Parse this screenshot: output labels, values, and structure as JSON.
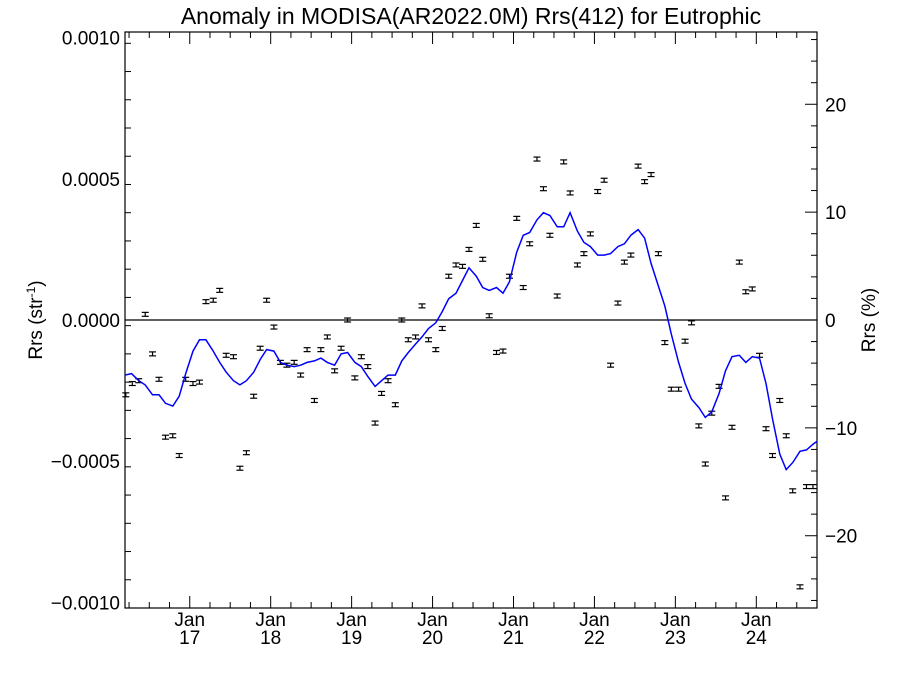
{
  "chart_data": {
    "type": "line",
    "title": "Anomaly in MODISA(AR2022.0M) Rrs(412) for Eutrophic",
    "ylabel_left": {
      "main": "Rrs (str",
      "sup": "-1",
      "tail": ")"
    },
    "ylabel_right": "Rrs (%)",
    "xlim": [
      2016.2,
      2024.75
    ],
    "ylim": [
      -0.00102,
      0.00102
    ],
    "ylim_right": [
      -26.7,
      26.7
    ],
    "grid": false,
    "zero_line": true,
    "x_ticks": [
      {
        "x": 2017,
        "label_top": "Jan",
        "label_bottom": "17"
      },
      {
        "x": 2018,
        "label_top": "Jan",
        "label_bottom": "18"
      },
      {
        "x": 2019,
        "label_top": "Jan",
        "label_bottom": "19"
      },
      {
        "x": 2020,
        "label_top": "Jan",
        "label_bottom": "20"
      },
      {
        "x": 2021,
        "label_top": "Jan",
        "label_bottom": "21"
      },
      {
        "x": 2022,
        "label_top": "Jan",
        "label_bottom": "22"
      },
      {
        "x": 2023,
        "label_top": "Jan",
        "label_bottom": "23"
      },
      {
        "x": 2024,
        "label_top": "Jan",
        "label_bottom": "24"
      }
    ],
    "y_ticks_left": [
      {
        "value": 0.001,
        "label": "0.0010"
      },
      {
        "value": 0.0005,
        "label": "0.0005"
      },
      {
        "value": 0.0,
        "label": "0.0000"
      },
      {
        "value": -0.0005,
        "label": "−0.0005"
      },
      {
        "value": -0.001,
        "label": "−0.0010"
      }
    ],
    "y_ticks_right": [
      {
        "value": 20,
        "label": "20"
      },
      {
        "value": 10,
        "label": "10"
      },
      {
        "value": 0,
        "label": "0"
      },
      {
        "value": -10,
        "label": "−10"
      },
      {
        "value": -20,
        "label": "−20"
      }
    ],
    "series": [
      {
        "style": "errorbar-points",
        "color": "#000000",
        "error": 7e-06,
        "x": [
          2016.21,
          2016.29,
          2016.37,
          2016.45,
          2016.54,
          2016.62,
          2016.7,
          2016.79,
          2016.87,
          2016.95,
          2017.04,
          2017.12,
          2017.2,
          2017.29,
          2017.37,
          2017.45,
          2017.54,
          2017.62,
          2017.7,
          2017.79,
          2017.87,
          2017.95,
          2018.04,
          2018.12,
          2018.2,
          2018.29,
          2018.37,
          2018.45,
          2018.54,
          2018.62,
          2018.7,
          2018.79,
          2018.87,
          2018.95,
          2019.04,
          2019.12,
          2019.2,
          2019.29,
          2019.37,
          2019.45,
          2019.54,
          2019.62,
          2019.7,
          2019.79,
          2019.87,
          2019.95,
          2020.04,
          2020.12,
          2020.2,
          2020.29,
          2020.37,
          2020.45,
          2020.54,
          2020.62,
          2020.7,
          2020.79,
          2020.87,
          2020.95,
          2021.04,
          2021.12,
          2021.2,
          2021.29,
          2021.37,
          2021.45,
          2021.54,
          2021.62,
          2021.7,
          2021.79,
          2021.87,
          2021.95,
          2022.04,
          2022.12,
          2022.2,
          2022.29,
          2022.37,
          2022.45,
          2022.54,
          2022.62,
          2022.7,
          2022.79,
          2022.87,
          2022.95,
          2023.04,
          2023.12,
          2023.2,
          2023.29,
          2023.37,
          2023.45,
          2023.54,
          2023.62,
          2023.7,
          2023.79,
          2023.87,
          2023.95,
          2024.04,
          2024.12,
          2024.2,
          2024.29,
          2024.37,
          2024.45,
          2024.54,
          2024.62,
          2024.7
        ],
        "y": [
          -0.000265,
          -0.000225,
          -0.000215,
          2e-05,
          -0.00012,
          -0.00021,
          -0.000415,
          -0.00041,
          -0.00048,
          -0.00021,
          -0.000225,
          -0.00022,
          6.5e-05,
          7e-05,
          0.000105,
          -0.000125,
          -0.00013,
          -0.000525,
          -0.00047,
          -0.00027,
          -0.0001,
          7e-05,
          -2.5e-05,
          -0.00015,
          -0.00016,
          -0.00015,
          -0.000195,
          -0.000105,
          -0.000285,
          -0.000105,
          -6e-05,
          -0.00018,
          -0.0001,
          0.0,
          -0.000205,
          -0.00013,
          -0.000165,
          -0.000365,
          -0.00026,
          -0.000215,
          -0.0003,
          0.0,
          -7e-05,
          -6e-05,
          5e-05,
          -7e-05,
          -0.000105,
          -3e-05,
          0.000155,
          0.000195,
          0.00019,
          0.00025,
          0.000335,
          0.000215,
          1.5e-05,
          -0.000115,
          -0.00011,
          0.000155,
          0.00036,
          0.000115,
          0.00027,
          0.00057,
          0.000465,
          0.0003,
          8.5e-05,
          0.00056,
          0.00045,
          0.000195,
          0.000235,
          0.000305,
          0.000455,
          0.000495,
          -0.00016,
          6e-05,
          0.000205,
          0.00023,
          0.000545,
          0.00049,
          0.000515,
          0.000235,
          -8e-05,
          -0.000245,
          -0.000245,
          -7.5e-05,
          -1e-05,
          -0.000375,
          -0.00051,
          -0.00033,
          -0.000235,
          -0.00063,
          -0.00038,
          0.000205,
          0.0001,
          0.00011,
          -0.000125,
          -0.000385,
          -0.00048,
          -0.000285,
          -0.00041,
          -0.000605,
          -0.000945,
          -0.00059,
          -0.00059
        ]
      },
      {
        "style": "line",
        "color": "#0000ff",
        "x": [
          2016.2,
          2016.28,
          2016.37,
          2016.45,
          2016.54,
          2016.62,
          2016.7,
          2016.79,
          2016.87,
          2016.95,
          2017.04,
          2017.12,
          2017.2,
          2017.29,
          2017.37,
          2017.45,
          2017.54,
          2017.62,
          2017.7,
          2017.79,
          2017.87,
          2017.95,
          2018.04,
          2018.12,
          2018.2,
          2018.29,
          2018.37,
          2018.45,
          2018.54,
          2018.62,
          2018.7,
          2018.79,
          2018.87,
          2018.95,
          2019.04,
          2019.12,
          2019.2,
          2019.29,
          2019.37,
          2019.45,
          2019.54,
          2019.62,
          2019.7,
          2019.79,
          2019.87,
          2019.95,
          2020.04,
          2020.12,
          2020.2,
          2020.29,
          2020.37,
          2020.45,
          2020.54,
          2020.62,
          2020.7,
          2020.79,
          2020.87,
          2020.95,
          2021.04,
          2021.12,
          2021.2,
          2021.29,
          2021.37,
          2021.45,
          2021.54,
          2021.62,
          2021.7,
          2021.79,
          2021.87,
          2021.95,
          2022.04,
          2022.12,
          2022.2,
          2022.29,
          2022.37,
          2022.45,
          2022.54,
          2022.62,
          2022.7,
          2022.79,
          2022.87,
          2022.95,
          2023.04,
          2023.12,
          2023.2,
          2023.29,
          2023.37,
          2023.45,
          2023.54,
          2023.62,
          2023.7,
          2023.79,
          2023.87,
          2023.95,
          2024.04,
          2024.12,
          2024.2,
          2024.29,
          2024.37,
          2024.45,
          2024.54,
          2024.62,
          2024.7,
          2024.75
        ],
        "y": [
          -0.000195,
          -0.00019,
          -0.000215,
          -0.00023,
          -0.000265,
          -0.000265,
          -0.000295,
          -0.000305,
          -0.00027,
          -0.00019,
          -0.00011,
          -7e-05,
          -7e-05,
          -0.00011,
          -0.00015,
          -0.000185,
          -0.000215,
          -0.00023,
          -0.000215,
          -0.000185,
          -0.00014,
          -0.000105,
          -0.00011,
          -0.00015,
          -0.00016,
          -0.000165,
          -0.00016,
          -0.00015,
          -0.000145,
          -0.000135,
          -0.00015,
          -0.00016,
          -0.00012,
          -0.000115,
          -0.00015,
          -0.000165,
          -0.0002,
          -0.000235,
          -0.000215,
          -0.000195,
          -0.000195,
          -0.000145,
          -0.000115,
          -8.5e-05,
          -6e-05,
          -3e-05,
          -1e-05,
          3e-05,
          7.5e-05,
          9.5e-05,
          0.00014,
          0.000185,
          0.000155,
          0.000115,
          0.000105,
          0.000115,
          9.5e-05,
          0.000135,
          0.00024,
          0.0003,
          0.00031,
          0.000355,
          0.00038,
          0.00037,
          0.00033,
          0.00033,
          0.00038,
          0.000315,
          0.000275,
          0.00026,
          0.00023,
          0.00023,
          0.000235,
          0.00026,
          0.00027,
          0.0003,
          0.00032,
          0.00029,
          0.0002,
          0.00012,
          5e-05,
          -5e-05,
          -0.00015,
          -0.000225,
          -0.00028,
          -0.00031,
          -0.000345,
          -0.000325,
          -0.00026,
          -0.00018,
          -0.00013,
          -0.000125,
          -0.00015,
          -0.00013,
          -0.000135,
          -0.000225,
          -0.00035,
          -0.000475,
          -0.00053,
          -0.000505,
          -0.000465,
          -0.00046,
          -0.00044,
          -0.00043
        ]
      }
    ]
  }
}
